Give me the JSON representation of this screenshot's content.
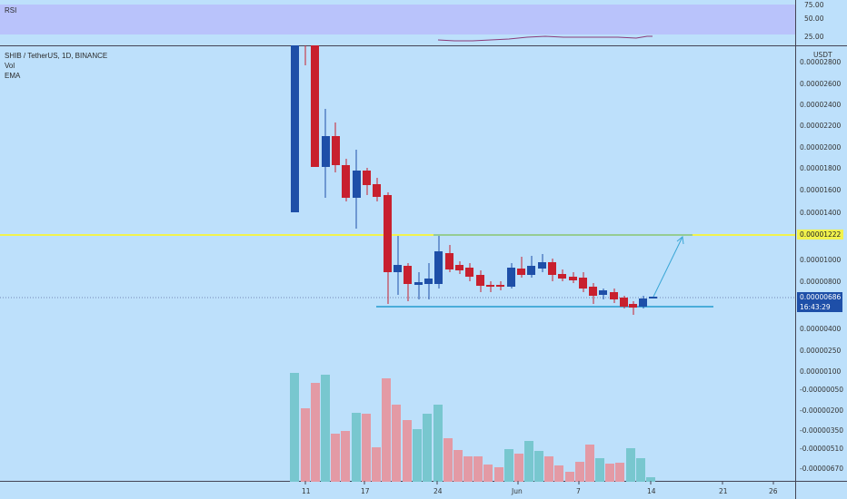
{
  "rsi": {
    "label": "RSI",
    "levels": [
      "75.00",
      "50.00",
      "25.00"
    ]
  },
  "chart": {
    "symbol_label": "SHIB / TetherUS, 1D, BINANCE",
    "indicators": [
      "Vol",
      "EMA"
    ],
    "currency": "USDT",
    "price_labels": [
      "0.00002800",
      "0.00002600",
      "0.00002400",
      "0.00002200",
      "0.00002000",
      "0.00001800",
      "0.00001600",
      "0.00001400",
      "0.00001222",
      "0.00001000",
      "0.00000800",
      "0.00000686",
      "0.00000400",
      "0.00000250",
      "0.00000100",
      "-0.00000050",
      "-0.00000200",
      "-0.00000350",
      "-0.00000510",
      "-0.00000670"
    ],
    "resistance_tag": "0.00001222",
    "current_price": "0.00000686",
    "countdown": "16:43:29",
    "date_labels": [
      "11",
      "17",
      "24",
      "Jun",
      "7",
      "14",
      "21",
      "26"
    ],
    "colors": {
      "up": "#1e4fa8",
      "down": "#c8202e",
      "resistance": "#f1f24d",
      "support": "#3aa6d6",
      "vol_up": "#78c7cf",
      "vol_down": "#e39aa5"
    }
  }
}
